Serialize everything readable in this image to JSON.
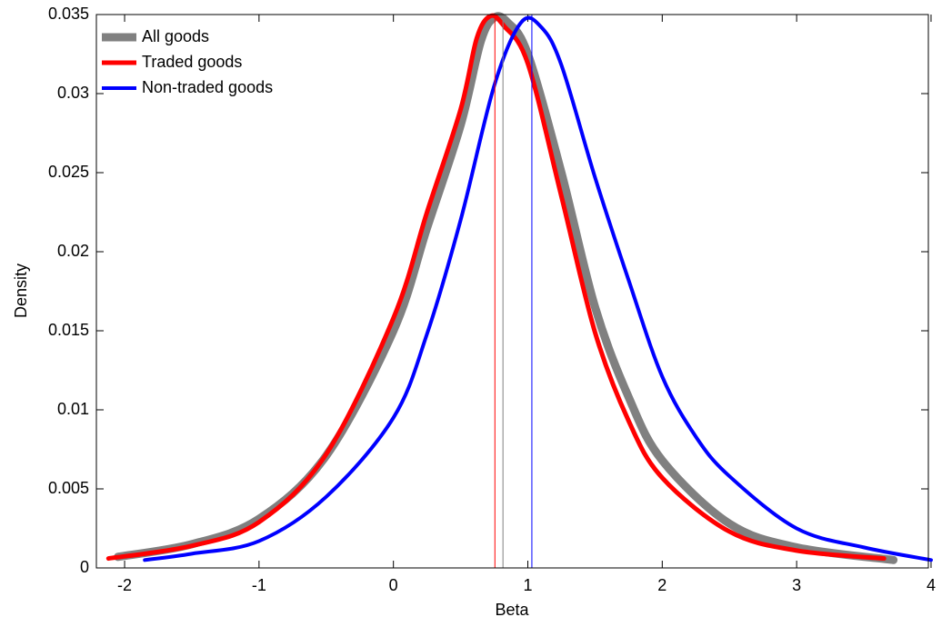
{
  "chart_data": {
    "type": "line",
    "xlabel": "Beta",
    "ylabel": "Density",
    "xlim": [
      -2.21,
      3.98
    ],
    "ylim": [
      0,
      0.035
    ],
    "xticks": [
      -2,
      -1,
      0,
      1,
      2,
      3,
      4
    ],
    "yticks": [
      0,
      0.005,
      0.01,
      0.015,
      0.02,
      0.025,
      0.03,
      0.035
    ],
    "legend": "upper left",
    "series": [
      {
        "name": "All goods",
        "color": "#808080",
        "mean": 0.815,
        "x": [
          -2.05,
          -1.5,
          -1,
          -0.5,
          0,
          0.25,
          0.5,
          0.65,
          0.75,
          0.85,
          1,
          1.25,
          1.5,
          1.75,
          2,
          2.5,
          3,
          3.72
        ],
        "values": [
          0.0007,
          0.0015,
          0.0031,
          0.0071,
          0.015,
          0.0215,
          0.028,
          0.0333,
          0.0348,
          0.0345,
          0.0325,
          0.025,
          0.0165,
          0.0108,
          0.0068,
          0.0028,
          0.0013,
          0.0005
        ]
      },
      {
        "name": "Traded goods",
        "color": "#ff0000",
        "mean": 0.755,
        "x": [
          -2.12,
          -1.5,
          -1,
          -0.5,
          0,
          0.25,
          0.5,
          0.62,
          0.72,
          0.82,
          1,
          1.25,
          1.5,
          1.75,
          2,
          2.5,
          3,
          3.65
        ],
        "values": [
          0.0006,
          0.0014,
          0.0029,
          0.0072,
          0.0158,
          0.0225,
          0.029,
          0.0335,
          0.0349,
          0.0343,
          0.0319,
          0.0235,
          0.0149,
          0.0093,
          0.0057,
          0.0023,
          0.0011,
          0.0006
        ]
      },
      {
        "name": "Non-traded goods",
        "color": "#0000ff",
        "mean": 1.03,
        "x": [
          -1.85,
          -1.5,
          -1,
          -0.5,
          0,
          0.25,
          0.5,
          0.75,
          0.95,
          1.1,
          1.25,
          1.5,
          1.75,
          2,
          2.25,
          2.5,
          3,
          3.5,
          4
        ],
        "values": [
          0.0005,
          0.0009,
          0.0017,
          0.0045,
          0.0095,
          0.0148,
          0.022,
          0.0305,
          0.0345,
          0.0342,
          0.0318,
          0.0247,
          0.0182,
          0.0121,
          0.0083,
          0.0058,
          0.0025,
          0.0013,
          0.0005
        ]
      }
    ]
  }
}
